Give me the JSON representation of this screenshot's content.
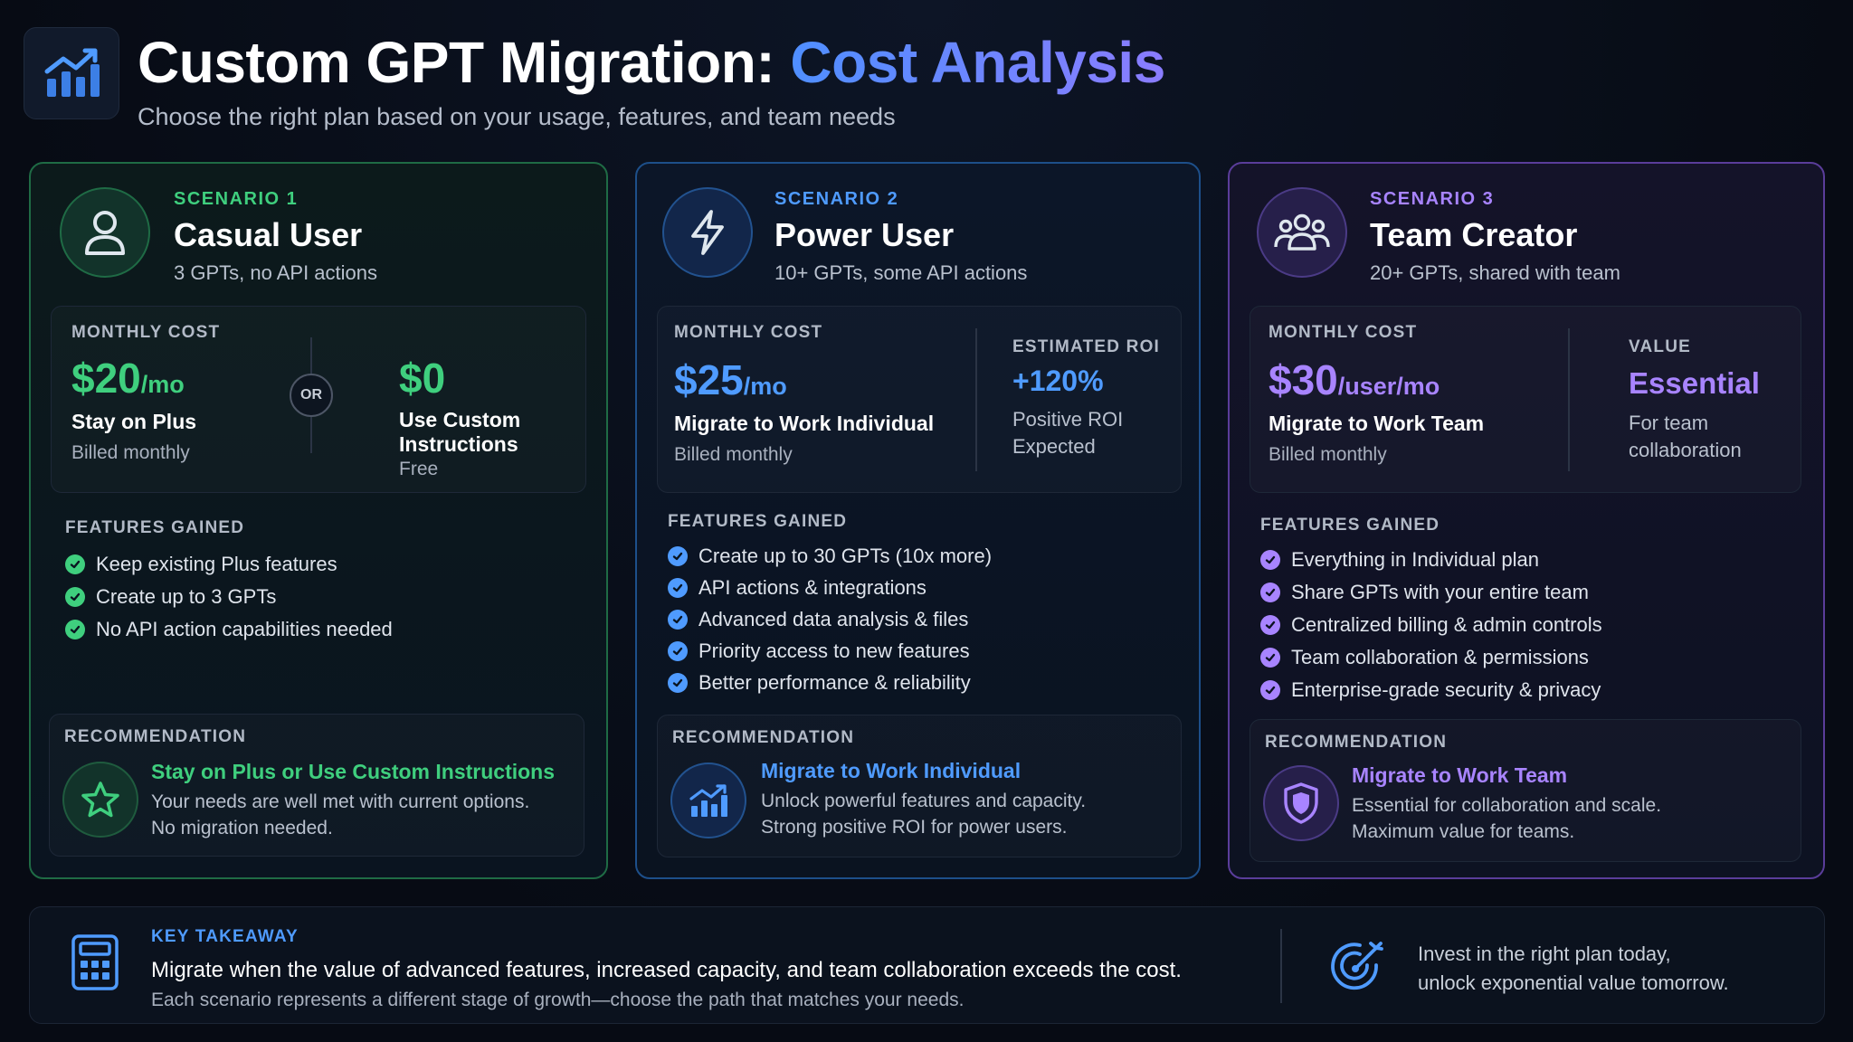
{
  "header": {
    "title_main": "Custom GPT Migration: ",
    "title_accent": "Cost Analysis",
    "subtitle": "Choose the right plan based on your usage, features, and team needs",
    "icon": "chart-icon"
  },
  "scenarios": [
    {
      "label": "SCENARIO 1",
      "title": "Casual User",
      "desc": "3 GPTs, no API actions",
      "icon": "user-icon",
      "accent": "#3fcf7e",
      "cost_label": "MONTHLY COST",
      "price": "$20",
      "price_unit": "/mo",
      "cost_main": "Stay on Plus",
      "cost_sub": "Billed monthly",
      "or_label": "OR",
      "alt_price": "$0",
      "alt_main_1": "Use Custom",
      "alt_main_2": "Instructions",
      "alt_sub": "Free",
      "features_label": "FEATURES GAINED",
      "features": [
        "Keep existing Plus features",
        "Create up to 3 GPTs",
        "No API action capabilities needed"
      ],
      "rec_label": "RECOMMENDATION",
      "rec_icon": "star-icon",
      "rec_title": "Stay on Plus or Use Custom Instructions",
      "rec_text_1": "Your needs are well met with current options.",
      "rec_text_2": "No migration needed."
    },
    {
      "label": "SCENARIO 2",
      "title": "Power User",
      "desc": "10+ GPTs, some API actions",
      "icon": "lightning-icon",
      "accent": "#4f9bff",
      "cost_label": "MONTHLY COST",
      "price": "$25",
      "price_unit": "/mo",
      "cost_main": "Migrate to Work Individual",
      "cost_sub": "Billed monthly",
      "side_label": "ESTIMATED ROI",
      "side_value": "+120%",
      "side_text_1": "Positive ROI",
      "side_text_2": "Expected",
      "features_label": "FEATURES GAINED",
      "features": [
        "Create up to 30 GPTs (10x more)",
        "API actions & integrations",
        "Advanced data analysis & files",
        "Priority access to new features",
        "Better performance & reliability"
      ],
      "rec_label": "RECOMMENDATION",
      "rec_icon": "growth-chart-icon",
      "rec_title": "Migrate to Work Individual",
      "rec_text_1": "Unlock powerful features and capacity.",
      "rec_text_2": "Strong positive ROI for power users."
    },
    {
      "label": "SCENARIO 3",
      "title": "Team Creator",
      "desc": "20+ GPTs, shared with team",
      "icon": "team-icon",
      "accent": "#a884ff",
      "cost_label": "MONTHLY COST",
      "price": "$30",
      "price_unit": "/user/mo",
      "cost_main": "Migrate to Work Team",
      "cost_sub": "Billed monthly",
      "side_label": "VALUE",
      "side_value": "Essential",
      "side_text_1": "For team",
      "side_text_2": "collaboration",
      "features_label": "FEATURES GAINED",
      "features": [
        "Everything in Individual plan",
        "Share GPTs with your entire team",
        "Centralized billing & admin controls",
        "Team collaboration & permissions",
        "Enterprise-grade security & privacy"
      ],
      "rec_label": "RECOMMENDATION",
      "rec_icon": "shield-icon",
      "rec_title": "Migrate to Work Team",
      "rec_text_1": "Essential for collaboration and scale.",
      "rec_text_2": "Maximum value for teams."
    }
  ],
  "takeaway": {
    "label": "KEY TAKEAWAY",
    "main": "Migrate when the value of advanced features, increased capacity, and team collaboration exceeds the cost.",
    "sub": "Each scenario represents a different stage of growth—choose the path that matches your needs.",
    "right_1": "Invest in the right plan today,",
    "right_2": "unlock exponential value tomorrow.",
    "left_icon": "calculator-icon",
    "right_icon": "target-icon"
  }
}
